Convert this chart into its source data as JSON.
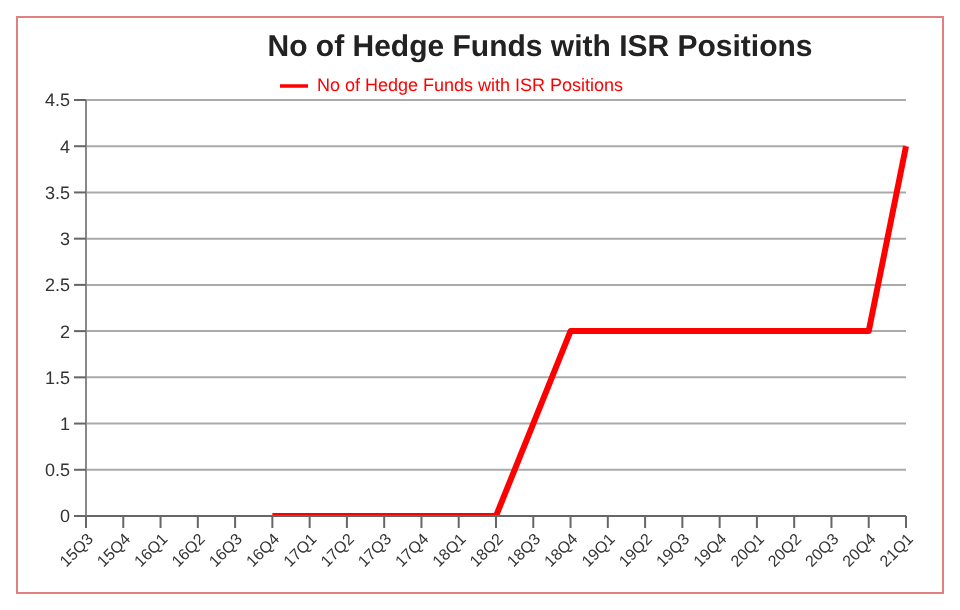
{
  "chart_data": {
    "type": "line",
    "title": "No of Hedge Funds with ISR Positions",
    "categories": [
      "15Q3",
      "15Q4",
      "16Q1",
      "16Q2",
      "16Q3",
      "16Q4",
      "17Q1",
      "17Q2",
      "17Q3",
      "17Q4",
      "18Q1",
      "18Q2",
      "18Q3",
      "18Q4",
      "19Q1",
      "19Q2",
      "19Q3",
      "19Q4",
      "20Q1",
      "20Q2",
      "20Q3",
      "20Q4",
      "21Q1"
    ],
    "series": [
      {
        "name": "No of Hedge Funds with ISR Positions",
        "color": "#ff0000",
        "values": [
          null,
          null,
          null,
          null,
          null,
          0,
          0,
          0,
          0,
          0,
          0,
          0,
          1,
          2,
          2,
          2,
          2,
          2,
          2,
          2,
          2,
          2,
          4
        ]
      }
    ],
    "ylim": [
      0,
      4.5
    ],
    "yticks": [
      0,
      0.5,
      1,
      1.5,
      2,
      2.5,
      3,
      3.5,
      4,
      4.5
    ],
    "grid": "y",
    "legend": "top",
    "marker": "none",
    "line_style": "solid"
  }
}
